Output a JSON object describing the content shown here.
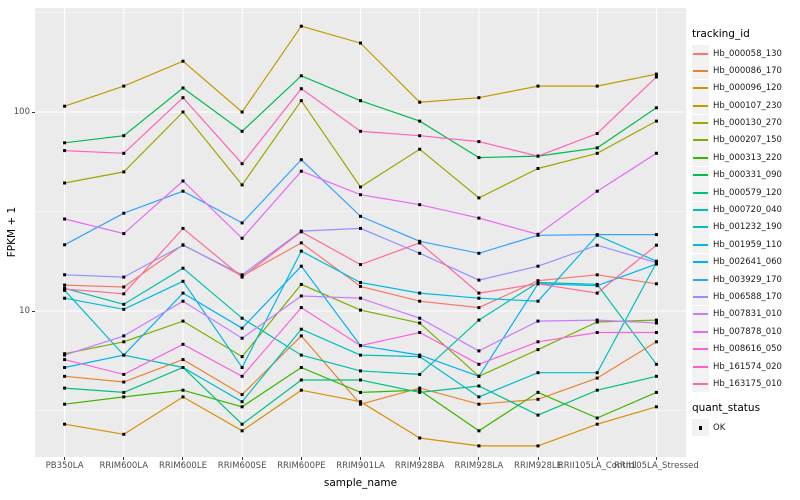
{
  "chart_data": {
    "type": "line",
    "title": "",
    "xlabel": "sample_name",
    "ylabel": "FPKM + 1",
    "y_scale": "log10",
    "y_ticks": [
      100,
      10
    ],
    "y_tick_labels": [
      "100",
      "10"
    ],
    "y_minor_breaks": [
      316.2,
      31.62,
      3.162
    ],
    "ylim_approx": [
      1.8,
      360
    ],
    "grid": "white-on-gray",
    "legend_position": "right",
    "point_color": "#000000",
    "panel_bg": "#EBEBEB",
    "grid_color": "#FFFFFF",
    "categories": [
      "PB350LA",
      "RRIM600LA",
      "RRIM600LE",
      "RRIM600SE",
      "RRIM600PE",
      "RRIM901LA",
      "RRIM928BA",
      "RRIM928LA",
      "RRIM928LE",
      "RRII105LA_Control",
      "RRII105LA_Stressed"
    ],
    "series": [
      {
        "name": "Hb_000058_130",
        "color": "#F8766D",
        "values": [
          13.5,
          13.2,
          21.5,
          15.0,
          22.0,
          13.3,
          11.2,
          10.4,
          14.2,
          15.2,
          13.7
        ]
      },
      {
        "name": "Hb_000086_170",
        "color": "#EA8331",
        "values": [
          4.7,
          4.4,
          5.7,
          3.8,
          7.5,
          3.4,
          4.1,
          3.4,
          3.6,
          4.6,
          7.0
        ]
      },
      {
        "name": "Hb_000096_120",
        "color": "#D89000",
        "values": [
          2.7,
          2.4,
          3.7,
          2.5,
          4.0,
          3.5,
          2.3,
          2.1,
          2.1,
          2.7,
          3.3
        ]
      },
      {
        "name": "Hb_000107_230",
        "color": "#C09B00",
        "values": [
          107,
          135,
          180,
          100,
          270,
          222,
          112,
          118,
          135,
          135,
          155
        ]
      },
      {
        "name": "Hb_000130_270",
        "color": "#A3A500",
        "values": [
          44,
          50,
          100,
          43,
          114,
          42,
          65,
          37,
          52,
          62,
          90
        ]
      },
      {
        "name": "Hb_000207_150",
        "color": "#7CAE00",
        "values": [
          6.1,
          7.0,
          8.9,
          5.9,
          13.6,
          10.1,
          8.7,
          4.7,
          6.4,
          8.8,
          9.0
        ]
      },
      {
        "name": "Hb_000313_220",
        "color": "#39B600",
        "values": [
          3.4,
          3.7,
          4.0,
          3.3,
          5.2,
          3.9,
          4.0,
          2.5,
          3.9,
          2.9,
          3.9
        ]
      },
      {
        "name": "Hb_000331_090",
        "color": "#00BB4E",
        "values": [
          70,
          76,
          132,
          80,
          152,
          114,
          90,
          59,
          60,
          66,
          105
        ]
      },
      {
        "name": "Hb_000579_120",
        "color": "#00C087",
        "values": [
          4.1,
          3.9,
          5.2,
          2.7,
          4.5,
          4.5,
          3.9,
          4.2,
          3.0,
          4.0,
          4.7
        ]
      },
      {
        "name": "Hb_000720_040",
        "color": "#00C1AB",
        "values": [
          13.0,
          10.8,
          16.4,
          9.2,
          6.0,
          5.0,
          4.8,
          9.0,
          13.9,
          13.6,
          5.4
        ]
      },
      {
        "name": "Hb_001232_190",
        "color": "#00BFC4",
        "values": [
          12.7,
          6.0,
          5.2,
          3.5,
          8.1,
          6.0,
          5.9,
          3.7,
          4.9,
          4.9,
          17.5
        ]
      },
      {
        "name": "Hb_001959_110",
        "color": "#00BAE0",
        "values": [
          11.6,
          10.2,
          14.1,
          5.2,
          20.0,
          13.9,
          12.3,
          11.6,
          11.2,
          24.0,
          17.8
        ]
      },
      {
        "name": "Hb_002641_060",
        "color": "#00B0F6",
        "values": [
          5.2,
          6.0,
          12.3,
          8.2,
          16.8,
          6.7,
          6.0,
          4.7,
          13.7,
          13.4,
          17.2
        ]
      },
      {
        "name": "Hb_003929_170",
        "color": "#35A2FF",
        "values": [
          21.5,
          31.0,
          40.0,
          27.7,
          57.6,
          29.9,
          22.4,
          19.5,
          24.0,
          24.2,
          24.2
        ]
      },
      {
        "name": "Hb_006588_170",
        "color": "#9590FF",
        "values": [
          15.2,
          14.8,
          21.4,
          15.2,
          25.2,
          26.0,
          19.5,
          14.3,
          16.8,
          21.4,
          17.5
        ]
      },
      {
        "name": "Hb_007831_010",
        "color": "#C77CFF",
        "values": [
          6.0,
          7.5,
          11.2,
          7.3,
          11.9,
          11.6,
          9.2,
          6.3,
          8.9,
          9.0,
          8.7
        ]
      },
      {
        "name": "Hb_007878_010",
        "color": "#E76BF3",
        "values": [
          29.0,
          24.5,
          45.0,
          23.2,
          50.4,
          38.4,
          34.2,
          29.3,
          24.3,
          40.0,
          62.0
        ]
      },
      {
        "name": "Hb_008616_050",
        "color": "#FA62DB",
        "values": [
          5.7,
          4.8,
          6.8,
          4.7,
          10.4,
          6.7,
          7.8,
          5.4,
          7.0,
          7.8,
          7.8
        ]
      },
      {
        "name": "Hb_161574_020",
        "color": "#FF62BC",
        "values": [
          64,
          62,
          118,
          55,
          131,
          80,
          76,
          71,
          60,
          78,
          150
        ]
      },
      {
        "name": "Hb_163175_010",
        "color": "#FF6A98",
        "values": [
          12.9,
          12.2,
          26.0,
          14.8,
          25.0,
          17.1,
          22.0,
          12.3,
          13.7,
          12.3,
          21.4
        ]
      }
    ],
    "legend": {
      "color_title": "tracking_id",
      "shape_title": "quant_status",
      "shape_items": [
        {
          "label": "OK"
        }
      ]
    }
  }
}
